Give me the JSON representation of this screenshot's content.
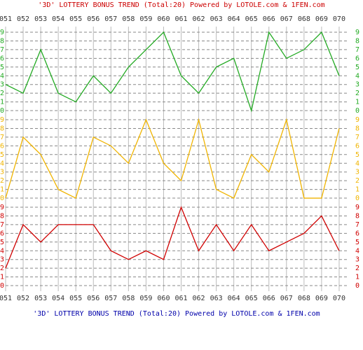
{
  "chart_data": {
    "type": "line",
    "title": "'3D' LOTTERY BONUS TREND (Total:20)  Powered by LOTOLE.com & 1FEN.com",
    "categories": [
      "051",
      "052",
      "053",
      "054",
      "055",
      "056",
      "057",
      "058",
      "059",
      "060",
      "061",
      "062",
      "063",
      "064",
      "065",
      "066",
      "067",
      "068",
      "069",
      "070"
    ],
    "series": [
      {
        "color": "#22aa22",
        "values": [
          3,
          2,
          7,
          2,
          1,
          4,
          2,
          5,
          7,
          9,
          4,
          2,
          5,
          6,
          0,
          9,
          6,
          7,
          9,
          4
        ]
      },
      {
        "color": "#f0b400",
        "values": [
          0,
          7,
          5,
          1,
          0,
          7,
          6,
          4,
          9,
          4,
          2,
          9,
          1,
          0,
          5,
          3,
          9,
          0,
          0,
          8
        ]
      },
      {
        "color": "#d00000",
        "values": [
          2,
          7,
          5,
          7,
          7,
          7,
          4,
          3,
          4,
          3,
          9,
          4,
          7,
          4,
          7,
          4,
          5,
          6,
          8,
          4
        ]
      }
    ],
    "ylim": [
      0,
      9
    ],
    "yticks": [
      0,
      1,
      2,
      3,
      4,
      5,
      6,
      7,
      8,
      9
    ],
    "grid": true
  }
}
